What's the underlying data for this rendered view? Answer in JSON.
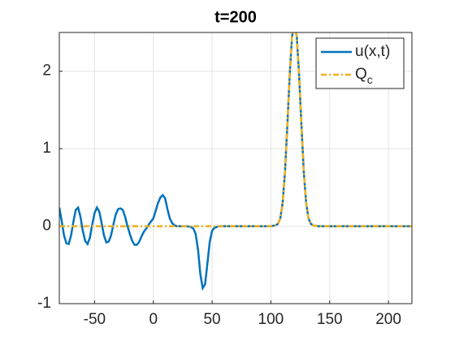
{
  "chart_data": {
    "type": "line",
    "title": "t=200",
    "x": [
      -80,
      -78,
      -76,
      -74,
      -72,
      -70,
      -68,
      -66,
      -64,
      -62,
      -60,
      -58,
      -56,
      -54,
      -52,
      -50,
      -48,
      -46,
      -44,
      -42,
      -40,
      -38,
      -36,
      -34,
      -32,
      -30,
      -28,
      -26,
      -24,
      -22,
      -20,
      -18,
      -16,
      -14,
      -12,
      -10,
      -8,
      -6,
      -4,
      -2,
      0,
      2,
      4,
      6,
      8,
      10,
      12,
      14,
      16,
      18,
      20,
      24,
      28,
      32,
      34,
      36,
      38,
      40,
      42,
      44,
      46,
      48,
      50,
      52,
      56,
      100,
      104,
      106,
      108,
      110,
      112,
      114,
      116,
      118,
      120,
      122,
      124,
      126,
      128,
      130,
      132,
      134,
      136,
      140,
      220
    ],
    "series": [
      {
        "name": "u(x,t)",
        "color": "#0072BD",
        "style": "solid",
        "values": [
          0.24,
          0.07,
          -0.12,
          -0.22,
          -0.23,
          -0.12,
          0.06,
          0.21,
          0.24,
          0.12,
          -0.06,
          -0.19,
          -0.23,
          -0.15,
          0.02,
          0.17,
          0.24,
          0.19,
          0.04,
          -0.12,
          -0.21,
          -0.2,
          -0.12,
          0.02,
          0.15,
          0.22,
          0.23,
          0.21,
          0.12,
          0,
          -0.1,
          -0.19,
          -0.24,
          -0.24,
          -0.2,
          -0.13,
          -0.07,
          -0.03,
          0.02,
          0.06,
          0.1,
          0.2,
          0.3,
          0.37,
          0.4,
          0.36,
          0.22,
          0.1,
          0.04,
          0.01,
          0,
          0,
          0,
          -0.01,
          -0.03,
          -0.1,
          -0.3,
          -0.62,
          -0.8,
          -0.75,
          -0.48,
          -0.2,
          -0.06,
          -0.02,
          0,
          0,
          0.01,
          0.03,
          0.1,
          0.3,
          0.7,
          1.3,
          1.95,
          2.45,
          2.6,
          2.45,
          1.95,
          1.3,
          0.7,
          0.3,
          0.1,
          0.03,
          0.01,
          0,
          0
        ]
      },
      {
        "name": "Qc",
        "color": "#EDB120",
        "style": "dashdot",
        "values": [
          0,
          0,
          0,
          0,
          0,
          0,
          0,
          0,
          0,
          0,
          0,
          0,
          0,
          0,
          0,
          0,
          0,
          0,
          0,
          0,
          0,
          0,
          0,
          0,
          0,
          0,
          0,
          0,
          0,
          0,
          0,
          0,
          0,
          0,
          0,
          0,
          0,
          0,
          0,
          0,
          0,
          0,
          0,
          0,
          0,
          0,
          0,
          0,
          0,
          0,
          0,
          0,
          0,
          0,
          0,
          0,
          0,
          0,
          0,
          0,
          0,
          0,
          0,
          0,
          0,
          0,
          0.01,
          0.03,
          0.1,
          0.3,
          0.7,
          1.3,
          1.95,
          2.45,
          2.6,
          2.45,
          1.95,
          1.3,
          0.7,
          0.3,
          0.1,
          0.03,
          0.01,
          0,
          0
        ]
      }
    ],
    "xlim": [
      -80,
      220
    ],
    "xticks": [
      -50,
      0,
      50,
      100,
      150,
      200
    ],
    "ylim": [
      -1,
      2.5
    ],
    "yticks": [
      -1,
      0,
      1,
      2
    ],
    "grid": true,
    "legend": "northeast"
  }
}
